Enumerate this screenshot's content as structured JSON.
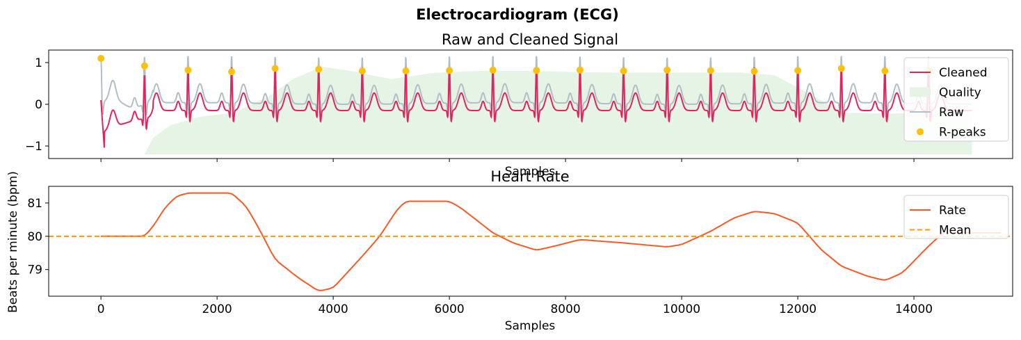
{
  "figure": {
    "suptitle": "Electrocardiogram (ECG)"
  },
  "chart_data": [
    {
      "type": "line",
      "title": "Raw and Cleaned Signal",
      "xlabel": "Samples",
      "ylabel": "",
      "xlim": [
        -900,
        15700
      ],
      "ylim": [
        -1.3,
        1.3
      ],
      "xticks": [
        0,
        2000,
        4000,
        6000,
        8000,
        10000,
        12000,
        14000
      ],
      "show_xtick_labels": false,
      "yticks": [
        -1,
        0,
        1
      ],
      "ytick_labels": [
        "−1",
        "0",
        "1"
      ],
      "grid": false,
      "legend_position": "top-right",
      "series": [
        {
          "name": "Cleaned",
          "kind": "line",
          "color": "#e0245e"
        },
        {
          "name": "Quality",
          "kind": "area",
          "color": "#e6f4e6",
          "baseline": -1.2,
          "points": [
            [
              750,
              -1.2
            ],
            [
              900,
              -0.8
            ],
            [
              1200,
              -0.5
            ],
            [
              1700,
              -0.3
            ],
            [
              2300,
              -0.2
            ],
            [
              2900,
              0.2
            ],
            [
              3300,
              0.6
            ],
            [
              3800,
              0.9
            ],
            [
              4300,
              0.8
            ],
            [
              5000,
              0.6
            ],
            [
              5700,
              0.75
            ],
            [
              6500,
              0.8
            ],
            [
              7400,
              0.8
            ],
            [
              8200,
              0.77
            ],
            [
              9000,
              0.76
            ],
            [
              10000,
              0.76
            ],
            [
              11000,
              0.76
            ],
            [
              11600,
              0.7
            ],
            [
              12000,
              0.4
            ],
            [
              12400,
              0.1
            ],
            [
              12800,
              -0.2
            ],
            [
              13600,
              -0.22
            ],
            [
              14400,
              -0.2
            ],
            [
              15000,
              -0.25
            ]
          ]
        },
        {
          "name": "Raw",
          "kind": "line",
          "color": "#b0bec5"
        },
        {
          "name": "R-peaks",
          "kind": "scatter",
          "color": "#ffc107",
          "points": [
            [
              0,
              1.1
            ],
            [
              750,
              0.92
            ],
            [
              1500,
              0.82
            ],
            [
              2250,
              0.78
            ],
            [
              3000,
              0.86
            ],
            [
              3750,
              0.84
            ],
            [
              4500,
              0.8
            ],
            [
              5250,
              0.8
            ],
            [
              6000,
              0.81
            ],
            [
              6750,
              0.82
            ],
            [
              7500,
              0.81
            ],
            [
              8250,
              0.82
            ],
            [
              9000,
              0.8
            ],
            [
              9750,
              0.82
            ],
            [
              10500,
              0.81
            ],
            [
              11250,
              0.79
            ],
            [
              12000,
              0.81
            ],
            [
              12750,
              0.86
            ],
            [
              13500,
              0.8
            ],
            [
              14250,
              0.79
            ]
          ]
        }
      ]
    },
    {
      "type": "line",
      "title": "Heart Rate",
      "xlabel": "Samples",
      "ylabel": "Beats per minute (bpm)",
      "xlim": [
        -900,
        15700
      ],
      "ylim": [
        78.2,
        81.5
      ],
      "xticks": [
        0,
        2000,
        4000,
        6000,
        8000,
        10000,
        12000,
        14000
      ],
      "xtick_labels": [
        "0",
        "2000",
        "4000",
        "6000",
        "8000",
        "10000",
        "12000",
        "14000"
      ],
      "yticks": [
        79,
        80,
        81
      ],
      "ytick_labels": [
        "79",
        "80",
        "81"
      ],
      "grid": false,
      "legend_position": "top-right",
      "series": [
        {
          "name": "Rate",
          "kind": "line",
          "color": "#ff5722",
          "points": [
            [
              0,
              80.0
            ],
            [
              750,
              80.0
            ],
            [
              900,
              80.3
            ],
            [
              1100,
              80.85
            ],
            [
              1300,
              81.2
            ],
            [
              1500,
              81.3
            ],
            [
              2250,
              81.3
            ],
            [
              2500,
              80.9
            ],
            [
              2700,
              80.3
            ],
            [
              3000,
              79.3
            ],
            [
              3400,
              78.75
            ],
            [
              3750,
              78.35
            ],
            [
              4000,
              78.45
            ],
            [
              4500,
              79.4
            ],
            [
              4800,
              80.0
            ],
            [
              5100,
              80.8
            ],
            [
              5250,
              81.05
            ],
            [
              6000,
              81.05
            ],
            [
              6200,
              80.85
            ],
            [
              6750,
              80.1
            ],
            [
              7100,
              79.8
            ],
            [
              7500,
              79.58
            ],
            [
              7800,
              79.7
            ],
            [
              8250,
              79.9
            ],
            [
              9000,
              79.8
            ],
            [
              9750,
              79.68
            ],
            [
              10000,
              79.75
            ],
            [
              10500,
              80.15
            ],
            [
              10900,
              80.55
            ],
            [
              11250,
              80.75
            ],
            [
              11600,
              80.68
            ],
            [
              12000,
              80.4
            ],
            [
              12400,
              79.6
            ],
            [
              12750,
              79.1
            ],
            [
              13200,
              78.8
            ],
            [
              13500,
              78.67
            ],
            [
              13800,
              78.9
            ],
            [
              14250,
              79.7
            ],
            [
              14500,
              80.1
            ],
            [
              15500,
              80.1
            ]
          ]
        },
        {
          "name": "Mean",
          "kind": "hline",
          "color": "#ff9800",
          "y": 80.0
        }
      ]
    }
  ]
}
